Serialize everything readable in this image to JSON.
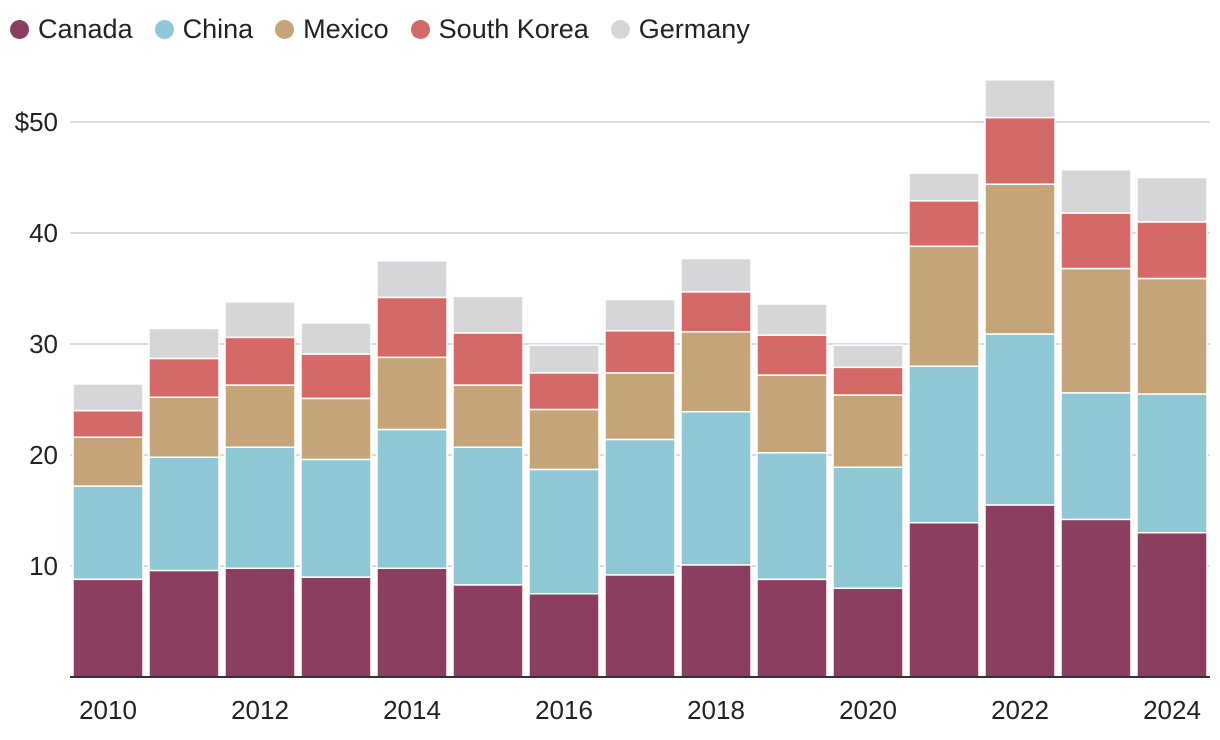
{
  "chart_data": {
    "type": "bar",
    "stacked": true,
    "categories": [
      "2010",
      "2011",
      "2012",
      "2013",
      "2014",
      "2015",
      "2016",
      "2017",
      "2018",
      "2019",
      "2020",
      "2021",
      "2022",
      "2023",
      "2024"
    ],
    "x_tick_labels": [
      "2010",
      "2012",
      "2014",
      "2016",
      "2018",
      "2020",
      "2022",
      "2024"
    ],
    "y_tick_labels": [
      "10",
      "20",
      "30",
      "40",
      "$50"
    ],
    "y_ticks": [
      10,
      20,
      30,
      40,
      50
    ],
    "ylim": [
      0,
      55
    ],
    "legend_position": "top-left",
    "series": [
      {
        "name": "Canada",
        "color": "#8b3e60",
        "values": [
          8.8,
          9.6,
          9.8,
          9.0,
          9.8,
          8.3,
          7.5,
          9.2,
          10.1,
          8.8,
          8.0,
          13.9,
          15.5,
          14.2,
          13.0
        ]
      },
      {
        "name": "China",
        "color": "#8fc8d4",
        "values": [
          8.4,
          10.2,
          10.9,
          10.6,
          12.5,
          12.4,
          11.2,
          12.2,
          13.8,
          11.4,
          10.9,
          14.1,
          15.4,
          11.4,
          12.5
        ]
      },
      {
        "name": "Mexico",
        "color": "#c6a47a",
        "values": [
          4.4,
          5.4,
          5.6,
          5.5,
          6.5,
          5.6,
          5.4,
          6.0,
          7.2,
          7.0,
          6.5,
          10.8,
          13.5,
          11.2,
          10.4
        ]
      },
      {
        "name": "South Korea",
        "color": "#d56968",
        "values": [
          2.4,
          3.5,
          4.3,
          4.0,
          5.4,
          4.7,
          3.3,
          3.8,
          3.6,
          3.6,
          2.5,
          4.1,
          6.0,
          5.0,
          5.1
        ]
      },
      {
        "name": "Germany",
        "color": "#d6d6d8",
        "values": [
          2.4,
          2.7,
          3.2,
          2.8,
          3.3,
          3.3,
          2.5,
          2.8,
          3.0,
          2.8,
          2.0,
          2.5,
          3.4,
          3.9,
          4.0
        ]
      }
    ]
  }
}
